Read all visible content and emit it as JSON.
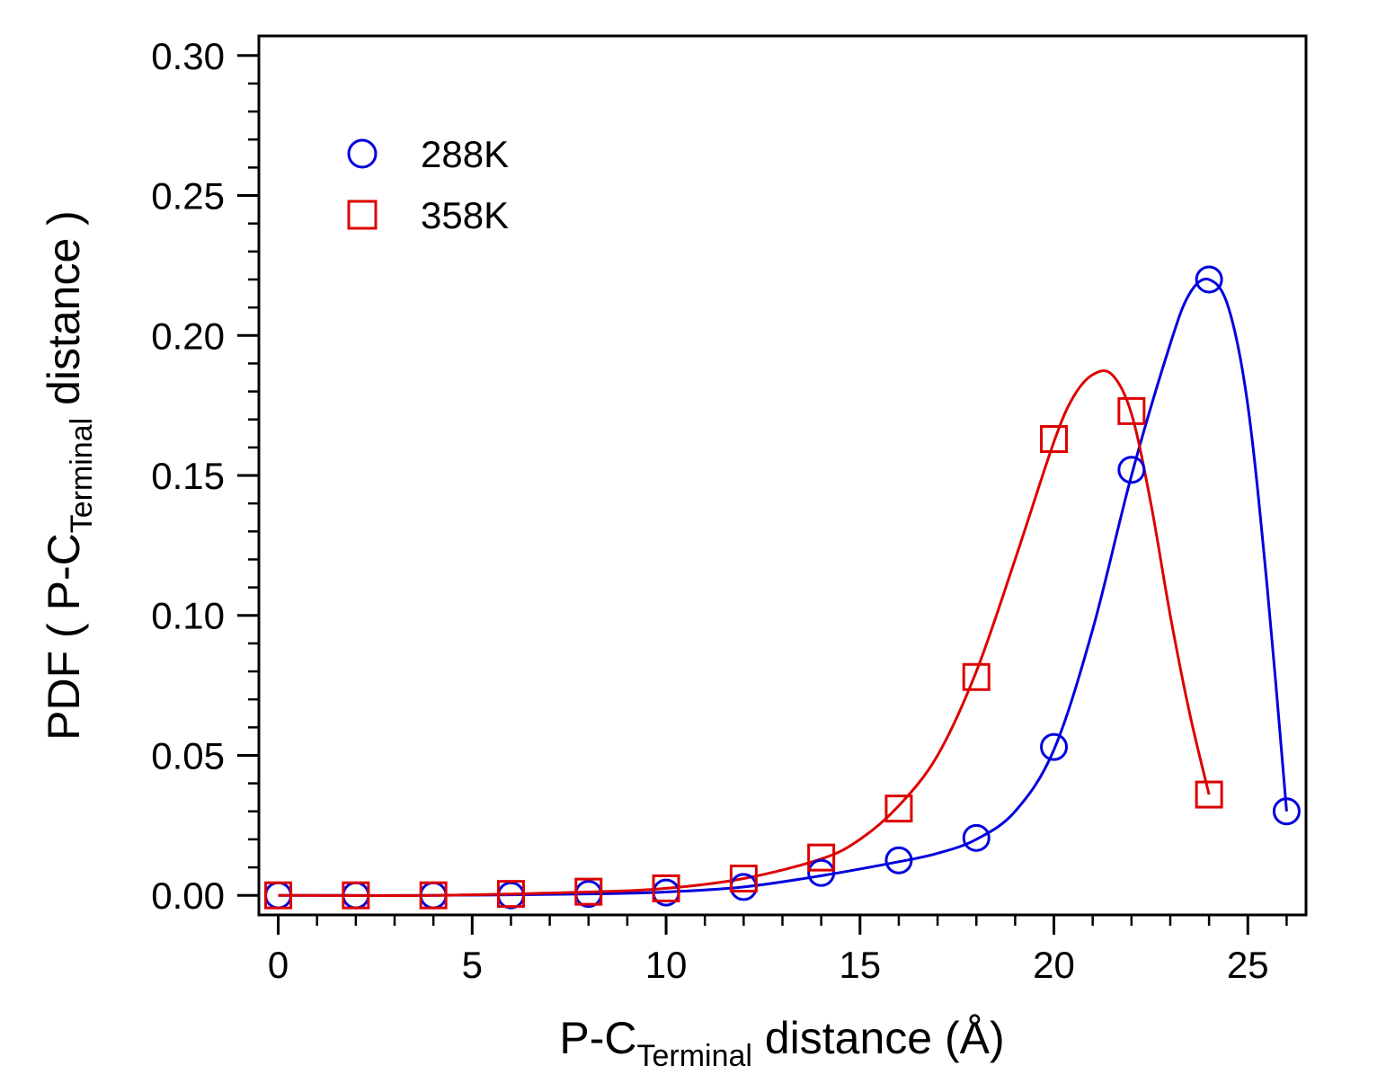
{
  "chart_data": {
    "type": "scatter",
    "xlabel": {
      "main": "P-C",
      "sub": "Terminal",
      "rest": " distance (Å)"
    },
    "ylabel": {
      "main": "PDF ( P-C",
      "sub": "Terminal",
      "rest": " distance )"
    },
    "xlim": [
      -0.5,
      26.5
    ],
    "ylim": [
      -0.007,
      0.307
    ],
    "x_ticks": [
      0,
      5,
      10,
      15,
      20,
      25
    ],
    "x_tick_labels": [
      "0",
      "5",
      "10",
      "15",
      "20",
      "25"
    ],
    "x_minor_step": 1,
    "y_ticks": [
      0.0,
      0.05,
      0.1,
      0.15,
      0.2,
      0.25,
      0.3
    ],
    "y_tick_labels": [
      "0.00",
      "0.05",
      "0.10",
      "0.15",
      "0.20",
      "0.25",
      "0.30"
    ],
    "y_minor_step": 0.01,
    "grid": false,
    "legend_position": "top-left",
    "series": [
      {
        "name": "288K",
        "marker": "circle",
        "color": "#0000dd",
        "x": [
          0,
          2,
          4,
          6,
          8,
          10,
          12,
          14,
          16,
          18,
          20,
          22,
          24,
          26
        ],
        "y": [
          0.0,
          0.0,
          0.0,
          0.0,
          0.0005,
          0.001,
          0.003,
          0.008,
          0.0125,
          0.0205,
          0.053,
          0.152,
          0.22,
          0.03
        ],
        "curve_x": [
          0,
          4,
          8,
          10,
          12,
          14,
          16,
          17,
          18,
          19,
          20,
          21,
          22,
          23,
          23.5,
          24,
          24.5,
          25,
          25.5,
          26
        ],
        "curve_y": [
          0.0,
          0.0,
          0.0005,
          0.0012,
          0.003,
          0.007,
          0.012,
          0.015,
          0.02,
          0.03,
          0.052,
          0.095,
          0.15,
          0.197,
          0.215,
          0.22,
          0.21,
          0.175,
          0.11,
          0.03
        ]
      },
      {
        "name": "358K",
        "marker": "square",
        "color": "#dd0000",
        "x": [
          0,
          2,
          4,
          6,
          8,
          10,
          12,
          14,
          16,
          18,
          20,
          22,
          24
        ],
        "y": [
          0.0,
          0.0,
          0.0,
          0.0005,
          0.0013,
          0.0025,
          0.006,
          0.0135,
          0.031,
          0.078,
          0.163,
          0.173,
          0.036
        ],
        "curve_x": [
          0,
          4,
          8,
          10,
          12,
          14,
          15,
          16,
          17,
          18,
          19,
          20,
          20.5,
          21,
          21.5,
          22,
          22.5,
          23,
          23.5,
          24
        ],
        "curve_y": [
          0.0,
          0.0,
          0.0012,
          0.0025,
          0.006,
          0.013,
          0.02,
          0.032,
          0.05,
          0.08,
          0.12,
          0.162,
          0.178,
          0.186,
          0.186,
          0.172,
          0.14,
          0.1,
          0.065,
          0.036
        ]
      }
    ]
  }
}
